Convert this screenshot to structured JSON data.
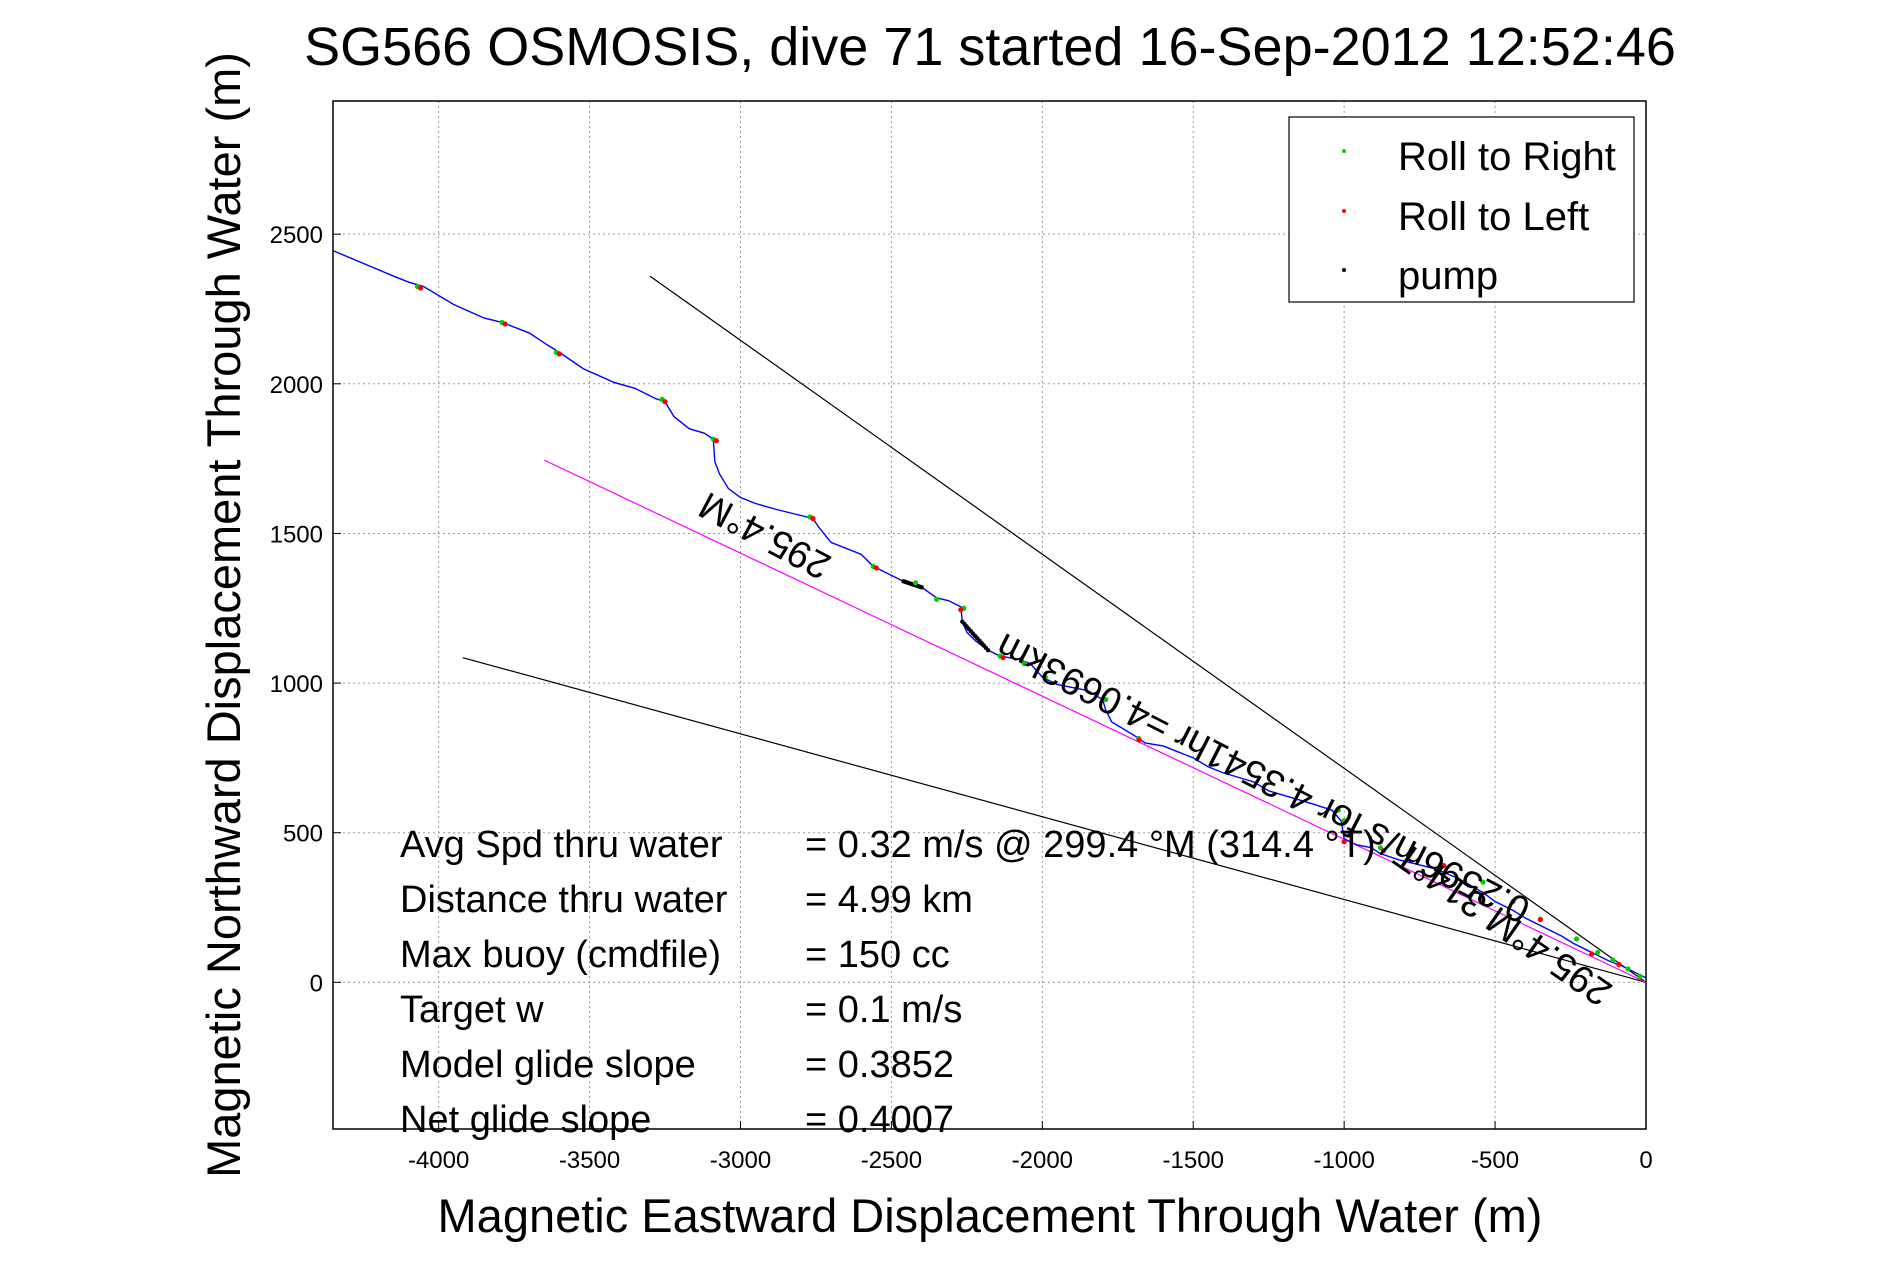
{
  "chart_data": {
    "type": "scatter",
    "title": "SG566 OSMOSIS, dive 71 started 16-Sep-2012 12:52:46",
    "xlabel": "Magnetic Eastward Displacement Through Water (m)",
    "ylabel": "Magnetic Northward Displacement Through Water (m)",
    "xlim": [
      -4350,
      0
    ],
    "ylim": [
      -490,
      2945
    ],
    "xticks": [
      -4000,
      -3500,
      -3000,
      -2500,
      -2000,
      -1500,
      -1000,
      -500,
      0
    ],
    "yticks": [
      0,
      500,
      1000,
      1500,
      2000,
      2500
    ],
    "grid": true,
    "legend_position": "top-right",
    "legend": [
      {
        "label": "Roll to Right",
        "color": "#00cc00"
      },
      {
        "label": "Roll to Left",
        "color": "#ff0000"
      },
      {
        "label": "pump",
        "color": "#000000"
      }
    ],
    "track": {
      "color": "#0000ff",
      "x": [
        -4350,
        -4150,
        -4100,
        -4050,
        -3950,
        -3850,
        -3790,
        -3700,
        -3640,
        -3600,
        -3520,
        -3420,
        -3350,
        -3280,
        -3250,
        -3220,
        -3170,
        -3120,
        -3090,
        -3085,
        -3070,
        -3040,
        -3000,
        -2950,
        -2880,
        -2820,
        -2760,
        -2740,
        -2700,
        -2600,
        -2560,
        -2500,
        -2460,
        -2400,
        -2350,
        -2310,
        -2270,
        -2265,
        -2250,
        -2220,
        -2180,
        -2140,
        -2080,
        -2040,
        -2000,
        -1950,
        -1850,
        -1800,
        -1790,
        -1770,
        -1720,
        -1680,
        -1660,
        -1600,
        -1550,
        -1500,
        -1450,
        -1400,
        -1300,
        -1250,
        -1200,
        -1100,
        -1040,
        -1010,
        -1000,
        -960,
        -910,
        -880,
        -820,
        -760,
        -700,
        -640,
        -600,
        -540,
        -500,
        -440,
        -400,
        -360,
        -320,
        -280,
        -240,
        -200,
        -160,
        -120,
        -80,
        -40,
        -10,
        0
      ],
      "y": [
        2445,
        2360,
        2340,
        2325,
        2265,
        2220,
        2205,
        2170,
        2130,
        2105,
        2050,
        2005,
        1985,
        1950,
        1940,
        1890,
        1850,
        1835,
        1815,
        1740,
        1700,
        1650,
        1620,
        1600,
        1580,
        1565,
        1550,
        1520,
        1470,
        1430,
        1390,
        1360,
        1340,
        1320,
        1285,
        1275,
        1255,
        1205,
        1170,
        1140,
        1110,
        1090,
        1080,
        1065,
        1020,
        995,
        975,
        945,
        910,
        870,
        840,
        815,
        800,
        790,
        770,
        750,
        720,
        700,
        670,
        640,
        625,
        595,
        575,
        540,
        480,
        460,
        450,
        430,
        410,
        395,
        380,
        355,
        335,
        300,
        270,
        240,
        215,
        195,
        175,
        155,
        130,
        110,
        90,
        70,
        55,
        35,
        20,
        15
      ]
    },
    "roll_right_points": {
      "x": [
        -4070,
        -3790,
        -3610,
        -3260,
        -3090,
        -2770,
        -2560,
        -2420,
        -2350,
        -2260,
        -2140,
        -2060,
        -1990,
        -1790,
        -1680,
        -1020,
        -1000,
        -880,
        -680,
        -540,
        -440,
        -350,
        -230,
        -160,
        -110,
        -60,
        -20
      ],
      "y": [
        2325,
        2205,
        2105,
        1948,
        1815,
        1555,
        1390,
        1335,
        1280,
        1250,
        1090,
        1065,
        1020,
        945,
        815,
        575,
        540,
        450,
        395,
        335,
        270,
        210,
        145,
        100,
        75,
        45,
        20
      ]
    },
    "roll_left_points": {
      "x": [
        -4060,
        -3780,
        -3600,
        -3250,
        -3080,
        -2760,
        -2550,
        -2270,
        -2130,
        -1680,
        -1000,
        -870,
        -670,
        -350,
        -180,
        -90
      ],
      "y": [
        2320,
        2200,
        2100,
        1940,
        1810,
        1550,
        1385,
        1245,
        1085,
        810,
        470,
        440,
        390,
        210,
        95,
        60
      ]
    },
    "pump_segments": [
      {
        "x": [
          -2460,
          -2400
        ],
        "y": [
          1340,
          1320
        ]
      },
      {
        "x": [
          -2265,
          -2180
        ],
        "y": [
          1205,
          1110
        ]
      }
    ],
    "guide_lines": [
      {
        "color": "#000000",
        "x": [
          -3300,
          0
        ],
        "y": [
          2360,
          0
        ]
      },
      {
        "color": "#000000",
        "x": [
          -3920,
          0
        ],
        "y": [
          1085,
          0
        ]
      },
      {
        "color": "#ff00ff",
        "x": [
          -3650,
          0
        ],
        "y": [
          1745,
          0
        ]
      }
    ],
    "rotated_annotations": [
      {
        "text": "295.4°M",
        "x": -2900,
        "y": 1530,
        "angle": 208
      },
      {
        "text": "0.2596m/s for 4.3541hr =4.0693km",
        "x": -1250,
        "y": 720,
        "angle": 207
      },
      {
        "text": "295.4°M   314°T",
        "x": -450,
        "y": 230,
        "angle": 215
      }
    ],
    "stats": [
      {
        "label": "Avg Spd thru water",
        "value": "=  0.32 m/s @ 299.4 °M (314.4 °T)"
      },
      {
        "label": "Distance thru water",
        "value": "=  4.99 km"
      },
      {
        "label": "Max buoy (cmdfile)",
        "value": "= 150 cc"
      },
      {
        "label": "Target w",
        "value": "= 0.1 m/s"
      },
      {
        "label": "Model glide slope",
        "value": "= 0.3852"
      },
      {
        "label": "Net glide slope",
        "value": "= 0.4007"
      }
    ]
  }
}
